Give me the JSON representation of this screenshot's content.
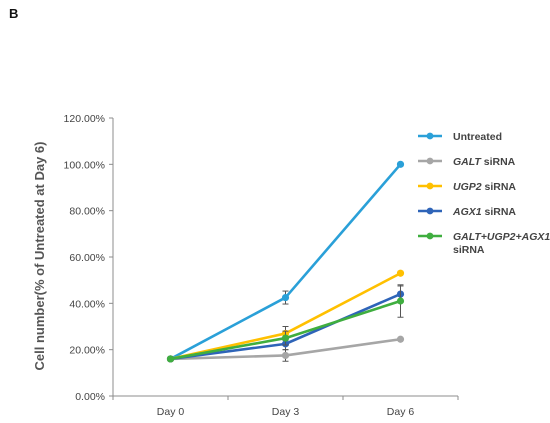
{
  "panel_label": "B",
  "chart_data": {
    "type": "line",
    "title": "",
    "xlabel": "",
    "ylabel": "Cell number(% of Untreated at Day 6)",
    "categories": [
      "Day 0",
      "Day 3",
      "Day 6"
    ],
    "ylim": [
      0,
      120
    ],
    "yticks": [
      "0.00%",
      "20.00%",
      "40.00%",
      "60.00%",
      "80.00%",
      "100.00%",
      "120.00%"
    ],
    "grid": false,
    "legend_position": "top-right",
    "series": [
      {
        "name": "Untreated",
        "gene": "",
        "suffix": "Untreated",
        "suffix2": "",
        "color": "#2aa0d8",
        "values": [
          16,
          42.5,
          100
        ],
        "errors": [
          0,
          2.8,
          0
        ]
      },
      {
        "name": "GALT siRNA",
        "gene": "GALT",
        "suffix": " siRNA",
        "suffix2": "",
        "color": "#a6a6a6",
        "values": [
          16,
          17.5,
          24.5
        ],
        "errors": [
          0,
          2.5,
          0
        ]
      },
      {
        "name": "UGP2 siRNA",
        "gene": "UGP2",
        "suffix": " siRNA",
        "suffix2": "",
        "color": "#ffc000",
        "values": [
          16,
          27,
          53
        ],
        "errors": [
          0,
          3,
          0
        ]
      },
      {
        "name": "AGX1 siRNA",
        "gene": "AGX1",
        "suffix": " siRNA",
        "suffix2": "",
        "color": "#2e64b8",
        "values": [
          16,
          22.5,
          44
        ],
        "errors": [
          0,
          2.5,
          3.5
        ]
      },
      {
        "name": "GALT+UGP2+AGX1 siRNA",
        "gene": "GALT+UGP2+AGX1",
        "suffix": "",
        "suffix2": "siRNA",
        "color": "#3fae3f",
        "values": [
          16,
          25,
          41
        ],
        "errors": [
          0,
          3,
          7
        ]
      }
    ]
  }
}
